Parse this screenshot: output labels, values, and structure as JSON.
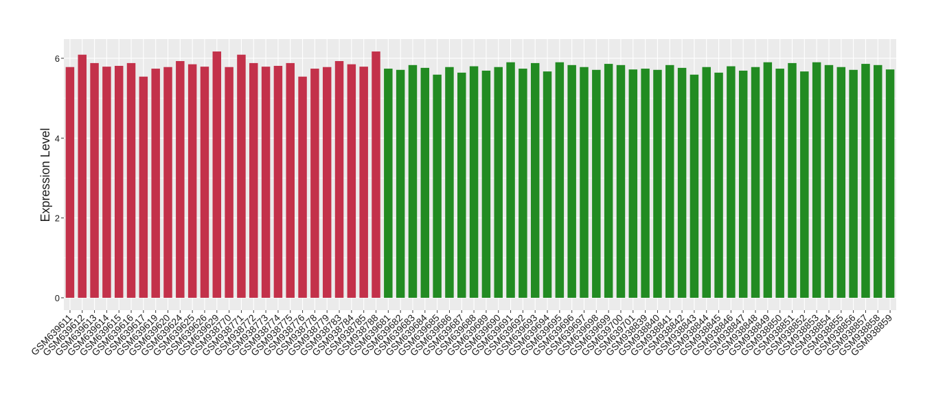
{
  "chart_data": {
    "type": "bar",
    "y_label": "Expression Level",
    "categories": [
      "GSM639611",
      "GSM639612",
      "GSM639613",
      "GSM639614",
      "GSM639615",
      "GSM639616",
      "GSM639617",
      "GSM639619",
      "GSM639620",
      "GSM639624",
      "GSM639625",
      "GSM639626",
      "GSM639629",
      "GSM938770",
      "GSM938771",
      "GSM938772",
      "GSM938773",
      "GSM938774",
      "GSM938775",
      "GSM938776",
      "GSM938778",
      "GSM938779",
      "GSM938783",
      "GSM938784",
      "GSM938785",
      "GSM938788",
      "GSM639681",
      "GSM639682",
      "GSM639683",
      "GSM639684",
      "GSM639685",
      "GSM639686",
      "GSM639687",
      "GSM639688",
      "GSM639689",
      "GSM639690",
      "GSM639691",
      "GSM639692",
      "GSM639693",
      "GSM639694",
      "GSM639695",
      "GSM639696",
      "GSM639697",
      "GSM639698",
      "GSM639699",
      "GSM639700",
      "GSM639701",
      "GSM938839",
      "GSM938840",
      "GSM938841",
      "GSM938842",
      "GSM938843",
      "GSM938844",
      "GSM938845",
      "GSM938846",
      "GSM938847",
      "GSM938848",
      "GSM938849",
      "GSM938850",
      "GSM938851",
      "GSM938852",
      "GSM938853",
      "GSM938854",
      "GSM938855",
      "GSM938856",
      "GSM938857",
      "GSM938858",
      "GSM938859"
    ],
    "values": [
      5.78,
      6.09,
      5.88,
      5.79,
      5.81,
      5.88,
      5.54,
      5.74,
      5.78,
      5.93,
      5.85,
      5.79,
      6.17,
      5.78,
      6.09,
      5.88,
      5.79,
      5.81,
      5.88,
      5.54,
      5.74,
      5.78,
      5.93,
      5.85,
      5.79,
      6.17,
      5.74,
      5.71,
      5.83,
      5.76,
      5.59,
      5.78,
      5.64,
      5.8,
      5.69,
      5.78,
      5.9,
      5.74,
      5.88,
      5.67,
      5.9,
      5.83,
      5.78,
      5.71,
      5.86,
      5.83,
      5.72,
      5.74,
      5.71,
      5.83,
      5.76,
      5.59,
      5.78,
      5.64,
      5.8,
      5.69,
      5.78,
      5.9,
      5.74,
      5.88,
      5.67,
      5.9,
      5.83,
      5.78,
      5.71,
      5.86,
      5.83,
      5.72
    ],
    "colors": [
      "#c3314a",
      "#c3314a",
      "#c3314a",
      "#c3314a",
      "#c3314a",
      "#c3314a",
      "#c3314a",
      "#c3314a",
      "#c3314a",
      "#c3314a",
      "#c3314a",
      "#c3314a",
      "#c3314a",
      "#c3314a",
      "#c3314a",
      "#c3314a",
      "#c3314a",
      "#c3314a",
      "#c3314a",
      "#c3314a",
      "#c3314a",
      "#c3314a",
      "#c3314a",
      "#c3314a",
      "#c3314a",
      "#c3314a",
      "#228b22",
      "#228b22",
      "#228b22",
      "#228b22",
      "#228b22",
      "#228b22",
      "#228b22",
      "#228b22",
      "#228b22",
      "#228b22",
      "#228b22",
      "#228b22",
      "#228b22",
      "#228b22",
      "#228b22",
      "#228b22",
      "#228b22",
      "#228b22",
      "#228b22",
      "#228b22",
      "#228b22",
      "#228b22",
      "#228b22",
      "#228b22",
      "#228b22",
      "#228b22",
      "#228b22",
      "#228b22",
      "#228b22",
      "#228b22",
      "#228b22",
      "#228b22",
      "#228b22",
      "#228b22",
      "#228b22",
      "#228b22",
      "#228b22",
      "#228b22",
      "#228b22",
      "#228b22",
      "#228b22",
      "#228b22"
    ],
    "ylim": [
      -0.31,
      6.48
    ],
    "yticks": [
      0,
      2,
      4,
      6
    ],
    "grid": true
  }
}
